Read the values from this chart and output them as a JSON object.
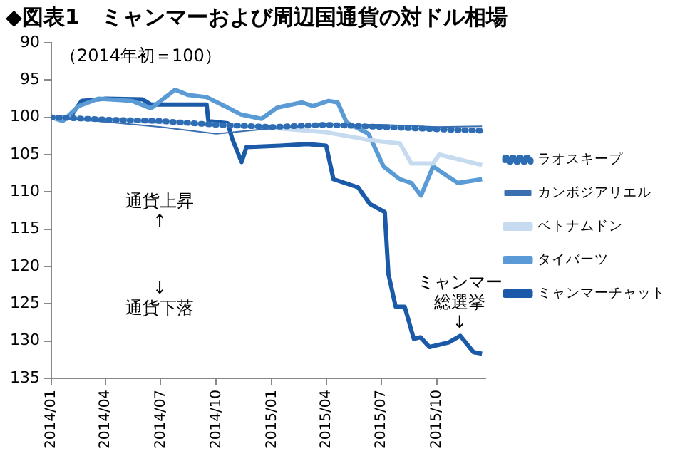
{
  "chart_data": {
    "type": "line",
    "title": "◆図表1　ミャンマーおよび周辺国通貨の対ドル相場",
    "annotations": [
      "（2014年初＝100）",
      "通貨上昇\n↑",
      "↓\n通貨下落",
      {
        "text": "ミャンマー総選挙\n↓",
        "x": "2015-11-08",
        "y": 129.3
      }
    ],
    "xlim": [
      "2014-01-01",
      "2015-12-20"
    ],
    "xticks": [
      {
        "value": "2014-01",
        "label": "2014/01"
      },
      {
        "value": "2014-04",
        "label": "2014/04"
      },
      {
        "value": "2014-07",
        "label": "2014/07"
      },
      {
        "value": "2014-10",
        "label": "2014/10"
      },
      {
        "value": "2015-01",
        "label": "2015/01"
      },
      {
        "value": "2015-04",
        "label": "2015/04"
      },
      {
        "value": "2015-07",
        "label": "2015/07"
      },
      {
        "value": "2015-10",
        "label": "2015/10"
      }
    ],
    "ylim": [
      135,
      90
    ],
    "yticks": [
      90,
      95,
      100,
      105,
      110,
      115,
      120,
      125,
      130,
      135
    ],
    "legend": "right",
    "marker": "none",
    "series": [
      {
        "name": "ラオスキープ",
        "color": "#2e6db4",
        "line_style": "dotted",
        "x": [
          "2014-01-01",
          "2014-04-01",
          "2014-07-01",
          "2014-10-01",
          "2015-01-01",
          "2015-04-01",
          "2015-07-01",
          "2015-10-01",
          "2015-12-15"
        ],
        "values": [
          100,
          100.3,
          100.5,
          101,
          101.3,
          101,
          101.3,
          101.6,
          101.8
        ]
      },
      {
        "name": "カンボジアリエル",
        "color": "#3a6fb0",
        "x": [
          "2014-01-01",
          "2014-04-01",
          "2014-07-01",
          "2014-10-01",
          "2015-01-01",
          "2015-04-01",
          "2015-07-01",
          "2015-10-01",
          "2015-12-15"
        ],
        "values": [
          100,
          100.6,
          101.3,
          102.2,
          101.5,
          101,
          101,
          101.3,
          101.2
        ]
      },
      {
        "name": "ベトナムドン",
        "color": "#c6dbef",
        "x": [
          "2014-01-01",
          "2014-06-01",
          "2014-12-01",
          "2015-04-01",
          "2015-06-15",
          "2015-08-01",
          "2015-08-20",
          "2015-09-25",
          "2015-10-05",
          "2015-12-15"
        ],
        "values": [
          100,
          100.5,
          101.2,
          102,
          103.1,
          103.5,
          106.2,
          106.2,
          105,
          106.4
        ]
      },
      {
        "name": "タイバーツ",
        "color": "#5b9bd5",
        "x": [
          "2014-01-01",
          "2014-01-20",
          "2014-02-15",
          "2014-03-20",
          "2014-05-15",
          "2014-06-15",
          "2014-07-25",
          "2014-08-15",
          "2014-09-15",
          "2014-10-15",
          "2014-11-10",
          "2014-12-15",
          "2015-01-10",
          "2015-02-20",
          "2015-03-10",
          "2015-04-05",
          "2015-04-20",
          "2015-05-05",
          "2015-06-10",
          "2015-07-05",
          "2015-08-01",
          "2015-08-20",
          "2015-09-05",
          "2015-09-25",
          "2015-11-05",
          "2015-12-15"
        ],
        "values": [
          100,
          100.5,
          98.5,
          97.5,
          97.8,
          98.8,
          96.3,
          97,
          97.3,
          98.5,
          99.6,
          100.2,
          98.7,
          98,
          98.5,
          97.8,
          98,
          100.7,
          102.2,
          106.6,
          108.3,
          108.8,
          110.5,
          106.6,
          108.8,
          108.3
        ]
      },
      {
        "name": "ミャンマーチャット",
        "color": "#1b5aa8",
        "x": [
          "2014-01-01",
          "2014-02-01",
          "2014-02-20",
          "2014-04-01",
          "2014-06-01",
          "2014-06-15",
          "2014-09-15",
          "2014-09-18",
          "2014-10-20",
          "2014-10-28",
          "2014-11-12",
          "2014-11-20",
          "2015-01-15",
          "2015-03-01",
          "2015-04-01",
          "2015-04-13",
          "2015-05-24",
          "2015-06-12",
          "2015-07-07",
          "2015-07-13",
          "2015-07-25",
          "2015-08-09",
          "2015-08-24",
          "2015-09-04",
          "2015-09-19",
          "2015-10-21",
          "2015-11-09",
          "2015-12-01",
          "2015-12-15"
        ],
        "values": [
          100,
          100,
          97.8,
          97.5,
          97.6,
          98.3,
          98.3,
          100.5,
          100.8,
          103,
          106,
          104,
          103.8,
          103.6,
          103.8,
          108.3,
          109.4,
          111.6,
          112.7,
          121,
          125.4,
          125.4,
          129.7,
          129.5,
          130.8,
          130.2,
          129.3,
          131.5,
          131.7
        ]
      }
    ]
  }
}
